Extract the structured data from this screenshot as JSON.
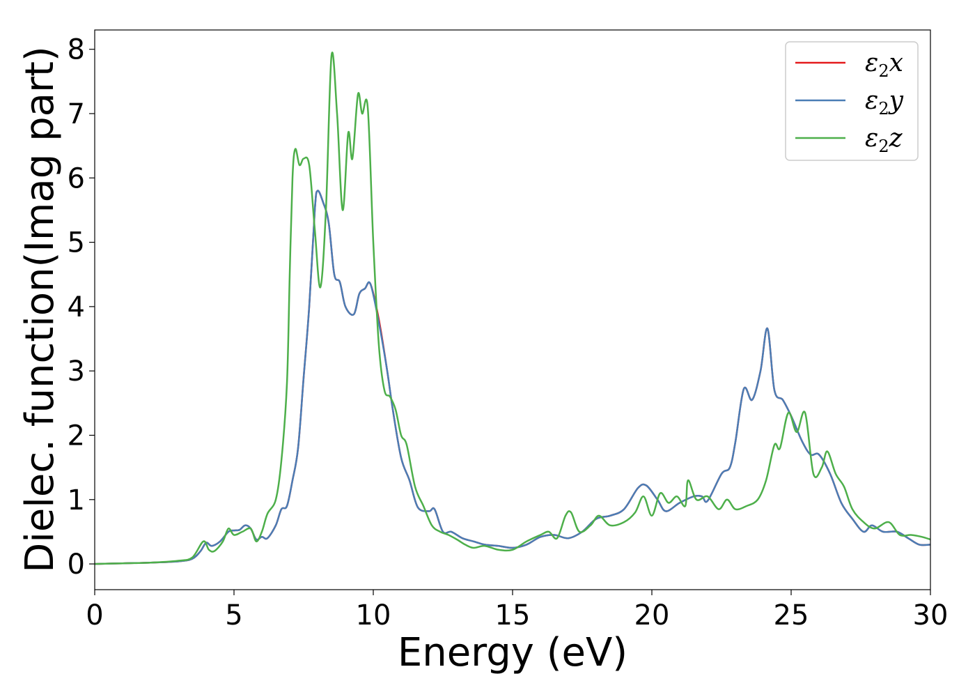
{
  "chart_data": {
    "type": "line",
    "xlabel": "Energy (eV)",
    "ylabel": "Dielec. function(Imag part)",
    "xlim": [
      0,
      30
    ],
    "ylim": [
      -0.4,
      8.3
    ],
    "xticks": [
      0,
      5,
      10,
      15,
      20,
      25,
      30
    ],
    "yticks": [
      0,
      1,
      2,
      3,
      4,
      5,
      6,
      7,
      8
    ],
    "grid": false,
    "legend_position": "top-right",
    "series": [
      {
        "name": "ε₂x",
        "legend_main": "ε",
        "legend_sub": "2",
        "legend_suffix": "x",
        "color": "#e41a1c",
        "points": [
          [
            0,
            0
          ],
          [
            1,
            0.01
          ],
          [
            2,
            0.02
          ],
          [
            3,
            0.04
          ],
          [
            3.5,
            0.08
          ],
          [
            3.8,
            0.2
          ],
          [
            4,
            0.33
          ],
          [
            4.2,
            0.28
          ],
          [
            4.5,
            0.35
          ],
          [
            4.8,
            0.5
          ],
          [
            5,
            0.52
          ],
          [
            5.2,
            0.53
          ],
          [
            5.4,
            0.6
          ],
          [
            5.6,
            0.55
          ],
          [
            5.8,
            0.38
          ],
          [
            6,
            0.42
          ],
          [
            6.2,
            0.4
          ],
          [
            6.5,
            0.6
          ],
          [
            6.7,
            0.85
          ],
          [
            6.9,
            0.9
          ],
          [
            7.1,
            1.3
          ],
          [
            7.3,
            1.8
          ],
          [
            7.5,
            2.9
          ],
          [
            7.7,
            4.0
          ],
          [
            7.9,
            5.5
          ],
          [
            8.0,
            5.8
          ],
          [
            8.2,
            5.62
          ],
          [
            8.4,
            5.3
          ],
          [
            8.6,
            4.5
          ],
          [
            8.8,
            4.38
          ],
          [
            9.0,
            4.0
          ],
          [
            9.3,
            3.88
          ],
          [
            9.5,
            4.2
          ],
          [
            9.7,
            4.28
          ],
          [
            9.9,
            4.35
          ],
          [
            10.2,
            3.8
          ],
          [
            10.5,
            3.0
          ],
          [
            10.7,
            2.4
          ],
          [
            11.0,
            1.65
          ],
          [
            11.3,
            1.3
          ],
          [
            11.6,
            0.88
          ],
          [
            12.0,
            0.82
          ],
          [
            12.2,
            0.85
          ],
          [
            12.5,
            0.5
          ],
          [
            12.8,
            0.5
          ],
          [
            13.2,
            0.4
          ],
          [
            13.6,
            0.35
          ],
          [
            14,
            0.3
          ],
          [
            14.5,
            0.28
          ],
          [
            15,
            0.25
          ],
          [
            15.5,
            0.3
          ],
          [
            16,
            0.42
          ],
          [
            16.5,
            0.45
          ],
          [
            17,
            0.4
          ],
          [
            17.5,
            0.5
          ],
          [
            18,
            0.7
          ],
          [
            18.5,
            0.75
          ],
          [
            19,
            0.85
          ],
          [
            19.5,
            1.18
          ],
          [
            19.8,
            1.22
          ],
          [
            20.2,
            1.0
          ],
          [
            20.5,
            0.82
          ],
          [
            21,
            0.95
          ],
          [
            21.5,
            1.05
          ],
          [
            21.8,
            1.05
          ],
          [
            22,
            0.98
          ],
          [
            22.5,
            1.4
          ],
          [
            22.8,
            1.5
          ],
          [
            23.0,
            1.9
          ],
          [
            23.3,
            2.72
          ],
          [
            23.6,
            2.55
          ],
          [
            23.9,
            3.0
          ],
          [
            24.15,
            3.66
          ],
          [
            24.4,
            2.7
          ],
          [
            24.7,
            2.55
          ],
          [
            25.0,
            2.3
          ],
          [
            25.4,
            1.9
          ],
          [
            25.7,
            1.7
          ],
          [
            26.0,
            1.7
          ],
          [
            26.4,
            1.4
          ],
          [
            26.8,
            0.95
          ],
          [
            27.2,
            0.7
          ],
          [
            27.6,
            0.5
          ],
          [
            27.9,
            0.6
          ],
          [
            28.3,
            0.5
          ],
          [
            28.8,
            0.5
          ],
          [
            29.2,
            0.4
          ],
          [
            29.6,
            0.3
          ],
          [
            30,
            0.3
          ]
        ]
      },
      {
        "name": "ε₂y",
        "legend_main": "ε",
        "legend_sub": "2",
        "legend_suffix": "y",
        "color": "#4a7db5",
        "points": [
          [
            0,
            0
          ],
          [
            1,
            0.01
          ],
          [
            2,
            0.02
          ],
          [
            3,
            0.04
          ],
          [
            3.5,
            0.08
          ],
          [
            3.8,
            0.2
          ],
          [
            4,
            0.33
          ],
          [
            4.2,
            0.28
          ],
          [
            4.5,
            0.35
          ],
          [
            4.8,
            0.5
          ],
          [
            5,
            0.52
          ],
          [
            5.2,
            0.53
          ],
          [
            5.4,
            0.6
          ],
          [
            5.6,
            0.55
          ],
          [
            5.8,
            0.38
          ],
          [
            6,
            0.42
          ],
          [
            6.2,
            0.4
          ],
          [
            6.5,
            0.6
          ],
          [
            6.7,
            0.85
          ],
          [
            6.9,
            0.9
          ],
          [
            7.1,
            1.3
          ],
          [
            7.3,
            1.8
          ],
          [
            7.5,
            2.9
          ],
          [
            7.7,
            4.0
          ],
          [
            7.9,
            5.5
          ],
          [
            8.0,
            5.8
          ],
          [
            8.2,
            5.62
          ],
          [
            8.4,
            5.3
          ],
          [
            8.6,
            4.5
          ],
          [
            8.8,
            4.38
          ],
          [
            9.0,
            4.0
          ],
          [
            9.3,
            3.88
          ],
          [
            9.5,
            4.2
          ],
          [
            9.7,
            4.28
          ],
          [
            9.9,
            4.35
          ],
          [
            10.2,
            3.75
          ],
          [
            10.5,
            3.0
          ],
          [
            10.7,
            2.4
          ],
          [
            11.0,
            1.65
          ],
          [
            11.3,
            1.3
          ],
          [
            11.6,
            0.88
          ],
          [
            12.0,
            0.82
          ],
          [
            12.2,
            0.85
          ],
          [
            12.5,
            0.5
          ],
          [
            12.8,
            0.5
          ],
          [
            13.2,
            0.4
          ],
          [
            13.6,
            0.35
          ],
          [
            14,
            0.3
          ],
          [
            14.5,
            0.28
          ],
          [
            15,
            0.25
          ],
          [
            15.5,
            0.3
          ],
          [
            16,
            0.42
          ],
          [
            16.5,
            0.45
          ],
          [
            17,
            0.4
          ],
          [
            17.5,
            0.5
          ],
          [
            18,
            0.7
          ],
          [
            18.5,
            0.75
          ],
          [
            19,
            0.85
          ],
          [
            19.5,
            1.18
          ],
          [
            19.8,
            1.22
          ],
          [
            20.2,
            1.0
          ],
          [
            20.5,
            0.82
          ],
          [
            21,
            0.95
          ],
          [
            21.5,
            1.05
          ],
          [
            21.8,
            1.05
          ],
          [
            22,
            0.98
          ],
          [
            22.5,
            1.4
          ],
          [
            22.8,
            1.5
          ],
          [
            23.0,
            1.9
          ],
          [
            23.3,
            2.72
          ],
          [
            23.6,
            2.55
          ],
          [
            23.9,
            3.0
          ],
          [
            24.15,
            3.66
          ],
          [
            24.4,
            2.7
          ],
          [
            24.7,
            2.55
          ],
          [
            25.0,
            2.3
          ],
          [
            25.4,
            1.9
          ],
          [
            25.7,
            1.7
          ],
          [
            26.0,
            1.7
          ],
          [
            26.4,
            1.4
          ],
          [
            26.8,
            0.95
          ],
          [
            27.2,
            0.7
          ],
          [
            27.6,
            0.5
          ],
          [
            27.9,
            0.6
          ],
          [
            28.3,
            0.5
          ],
          [
            28.8,
            0.5
          ],
          [
            29.2,
            0.4
          ],
          [
            29.6,
            0.3
          ],
          [
            30,
            0.3
          ]
        ]
      },
      {
        "name": "ε₂z",
        "legend_main": "ε",
        "legend_sub": "2",
        "legend_suffix": "z",
        "color": "#4daf4a",
        "points": [
          [
            0,
            0
          ],
          [
            1,
            0.01
          ],
          [
            2,
            0.02
          ],
          [
            3,
            0.05
          ],
          [
            3.5,
            0.1
          ],
          [
            3.9,
            0.35
          ],
          [
            4.1,
            0.22
          ],
          [
            4.3,
            0.2
          ],
          [
            4.6,
            0.35
          ],
          [
            4.8,
            0.55
          ],
          [
            5.0,
            0.45
          ],
          [
            5.3,
            0.5
          ],
          [
            5.6,
            0.55
          ],
          [
            5.8,
            0.35
          ],
          [
            6.0,
            0.5
          ],
          [
            6.2,
            0.78
          ],
          [
            6.5,
            1.0
          ],
          [
            6.7,
            1.6
          ],
          [
            6.9,
            2.8
          ],
          [
            7.0,
            4.5
          ],
          [
            7.1,
            6.0
          ],
          [
            7.2,
            6.45
          ],
          [
            7.35,
            6.2
          ],
          [
            7.5,
            6.3
          ],
          [
            7.7,
            6.2
          ],
          [
            7.9,
            5.2
          ],
          [
            8.1,
            4.3
          ],
          [
            8.3,
            5.5
          ],
          [
            8.5,
            7.9
          ],
          [
            8.7,
            7.0
          ],
          [
            8.9,
            5.5
          ],
          [
            9.1,
            6.7
          ],
          [
            9.25,
            6.3
          ],
          [
            9.45,
            7.3
          ],
          [
            9.6,
            7.0
          ],
          [
            9.8,
            7.1
          ],
          [
            10.0,
            5.0
          ],
          [
            10.2,
            3.4
          ],
          [
            10.4,
            2.7
          ],
          [
            10.6,
            2.6
          ],
          [
            10.8,
            2.4
          ],
          [
            11.0,
            2.0
          ],
          [
            11.2,
            1.85
          ],
          [
            11.5,
            1.2
          ],
          [
            11.8,
            0.9
          ],
          [
            12.1,
            0.6
          ],
          [
            12.4,
            0.5
          ],
          [
            12.7,
            0.45
          ],
          [
            13.0,
            0.38
          ],
          [
            13.3,
            0.3
          ],
          [
            13.6,
            0.25
          ],
          [
            14,
            0.28
          ],
          [
            14.5,
            0.22
          ],
          [
            15,
            0.22
          ],
          [
            15.5,
            0.35
          ],
          [
            16,
            0.45
          ],
          [
            16.3,
            0.5
          ],
          [
            16.6,
            0.4
          ],
          [
            16.9,
            0.75
          ],
          [
            17.1,
            0.8
          ],
          [
            17.4,
            0.5
          ],
          [
            17.8,
            0.6
          ],
          [
            18.1,
            0.75
          ],
          [
            18.5,
            0.6
          ],
          [
            19,
            0.65
          ],
          [
            19.4,
            0.8
          ],
          [
            19.7,
            1.05
          ],
          [
            20,
            0.75
          ],
          [
            20.3,
            1.1
          ],
          [
            20.6,
            0.95
          ],
          [
            20.9,
            1.05
          ],
          [
            21.2,
            0.9
          ],
          [
            21.3,
            1.3
          ],
          [
            21.6,
            1.0
          ],
          [
            22.0,
            1.05
          ],
          [
            22.4,
            0.85
          ],
          [
            22.7,
            1.0
          ],
          [
            23.0,
            0.85
          ],
          [
            23.4,
            0.9
          ],
          [
            23.8,
            1.0
          ],
          [
            24.1,
            1.3
          ],
          [
            24.4,
            1.85
          ],
          [
            24.6,
            1.8
          ],
          [
            24.9,
            2.35
          ],
          [
            25.2,
            2.05
          ],
          [
            25.5,
            2.35
          ],
          [
            25.8,
            1.4
          ],
          [
            26.1,
            1.5
          ],
          [
            26.3,
            1.75
          ],
          [
            26.6,
            1.4
          ],
          [
            26.9,
            1.2
          ],
          [
            27.2,
            0.85
          ],
          [
            27.6,
            0.65
          ],
          [
            28.0,
            0.55
          ],
          [
            28.5,
            0.65
          ],
          [
            28.9,
            0.45
          ],
          [
            29.3,
            0.45
          ],
          [
            29.7,
            0.42
          ],
          [
            30,
            0.38
          ]
        ]
      }
    ]
  }
}
